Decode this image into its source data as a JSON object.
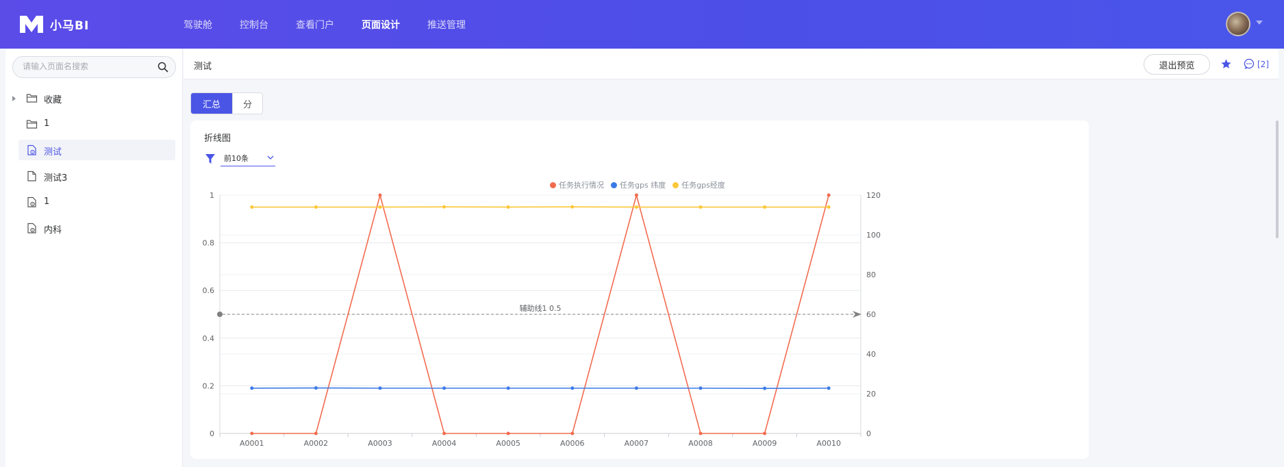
{
  "app": {
    "logo_text": "小马BI"
  },
  "nav": {
    "items": [
      {
        "label": "驾驶舱",
        "active": false
      },
      {
        "label": "控制台",
        "active": false
      },
      {
        "label": "查看门户",
        "active": false
      },
      {
        "label": "页面设计",
        "active": true
      },
      {
        "label": "推送管理",
        "active": false
      }
    ]
  },
  "sidebar": {
    "search_placeholder": "请输入页面名搜索",
    "items": [
      {
        "label": "收藏",
        "icon": "folder-icon",
        "expandable": true,
        "active": false
      },
      {
        "label": "1",
        "icon": "folder-icon",
        "expandable": false,
        "active": false
      },
      {
        "label": "测试",
        "icon": "page-settings-icon",
        "expandable": false,
        "active": true
      },
      {
        "label": "测试3",
        "icon": "document-icon",
        "expandable": false,
        "active": false
      },
      {
        "label": "1",
        "icon": "page-settings-icon",
        "expandable": false,
        "active": false
      },
      {
        "label": "内科",
        "icon": "page-settings-icon",
        "expandable": false,
        "active": false
      }
    ]
  },
  "header": {
    "page_title": "测试",
    "exit_preview_label": "退出预览",
    "comment_count": "[2]"
  },
  "tabs": [
    {
      "label": "汇总",
      "active": true
    },
    {
      "label": "分",
      "active": false
    }
  ],
  "card": {
    "title": "折线图",
    "filter_value": "前10条"
  },
  "colors": {
    "accent": "#4a55e6",
    "series_red": "#f26b4e",
    "series_blue": "#3a7ae8",
    "series_yellow": "#fbc73a"
  },
  "chart_data": {
    "type": "line",
    "categories": [
      "A0001",
      "A0002",
      "A0003",
      "A0004",
      "A0005",
      "A0006",
      "A0007",
      "A0008",
      "A0009",
      "A0010"
    ],
    "series": [
      {
        "name": "任务执行情况",
        "axis": "left",
        "color": "#f26b4e",
        "values": [
          0,
          0,
          1,
          0,
          0,
          0,
          1,
          0,
          0,
          1
        ]
      },
      {
        "name": "任务gps 纬度",
        "axis": "right",
        "color": "#3a7ae8",
        "values": [
          22.8,
          22.9,
          22.8,
          22.8,
          22.8,
          22.8,
          22.8,
          22.8,
          22.7,
          22.8
        ]
      },
      {
        "name": "任务gps经度",
        "axis": "right",
        "color": "#fbc73a",
        "values": [
          114.0,
          114.0,
          114.0,
          114.1,
          114.0,
          114.1,
          114.0,
          114.0,
          114.0,
          114.0
        ]
      }
    ],
    "y_left": {
      "min": 0,
      "max": 1,
      "ticks": [
        "0",
        "0.2",
        "0.4",
        "0.6",
        "0.8",
        "1"
      ]
    },
    "y_right": {
      "min": 0,
      "max": 120,
      "ticks": [
        "0",
        "20",
        "40",
        "60",
        "80",
        "100",
        "120"
      ]
    },
    "mark_line": {
      "label": "辅助线1 0.5",
      "value": 0.5,
      "axis": "left"
    },
    "grid": true,
    "legend_position": "top-center",
    "title": "",
    "xlabel": "",
    "ylabel": ""
  }
}
